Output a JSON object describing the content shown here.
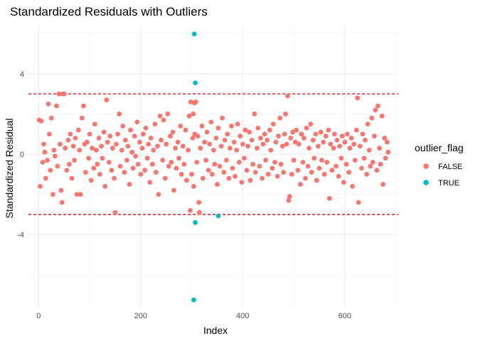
{
  "chart_data": {
    "type": "scatter",
    "title": "Standardized Residuals with Outliers",
    "xlabel": "Index",
    "ylabel": "Standardized Residual",
    "xlim": [
      -20,
      705
    ],
    "ylim": [
      -7.6,
      6.4
    ],
    "x_ticks": [
      0,
      200,
      400,
      600
    ],
    "y_ticks": [
      -4,
      0,
      4
    ],
    "grid": true,
    "threshold_lines": [
      3,
      -3
    ],
    "threshold_color": "#e8131f",
    "legend": {
      "title": "outlier_flag",
      "placement": "right",
      "entries": [
        {
          "label": "FALSE",
          "color": "#f8766d"
        },
        {
          "label": "TRUE",
          "color": "#00bfc4"
        }
      ]
    },
    "series": [
      {
        "name": "TRUE",
        "color": "#00bfc4",
        "points": [
          [
            305,
            5.98
          ],
          [
            307,
            3.55
          ],
          [
            307,
            -3.4
          ],
          [
            352,
            -3.07
          ],
          [
            304,
            -7.25
          ]
        ]
      },
      {
        "name": "FALSE",
        "color": "#f8766d",
        "points": [
          [
            1,
            1.7
          ],
          [
            3,
            -1.6
          ],
          [
            5,
            1.65
          ],
          [
            8,
            -0.4
          ],
          [
            10,
            0.5
          ],
          [
            12,
            0.1
          ],
          [
            14,
            -1.2
          ],
          [
            17,
            -0.3
          ],
          [
            19,
            2.5
          ],
          [
            21,
            1.0
          ],
          [
            23,
            -0.8
          ],
          [
            25,
            1.8
          ],
          [
            28,
            -2.0
          ],
          [
            30,
            0.2
          ],
          [
            32,
            -0.1
          ],
          [
            35,
            2.4
          ],
          [
            37,
            -0.6
          ],
          [
            40,
            3.0
          ],
          [
            42,
            0.5
          ],
          [
            44,
            -1.8
          ],
          [
            46,
            -2.4
          ],
          [
            48,
            3.0
          ],
          [
            50,
            3.0
          ],
          [
            52,
            0.3
          ],
          [
            55,
            -0.8
          ],
          [
            58,
            0.7
          ],
          [
            60,
            -0.5
          ],
          [
            62,
            1.0
          ],
          [
            65,
            -1.2
          ],
          [
            68,
            0.4
          ],
          [
            70,
            -0.3
          ],
          [
            72,
            0.8
          ],
          [
            75,
            -2.0
          ],
          [
            78,
            1.2
          ],
          [
            80,
            0.2
          ],
          [
            82,
            -2.0
          ],
          [
            85,
            1.8
          ],
          [
            88,
            2.4
          ],
          [
            90,
            0.5
          ],
          [
            92,
            -0.9
          ],
          [
            95,
            0.6
          ],
          [
            98,
            -0.2
          ],
          [
            100,
            1.0
          ],
          [
            103,
            -1.3
          ],
          [
            105,
            0.3
          ],
          [
            108,
            -0.7
          ],
          [
            110,
            1.5
          ],
          [
            113,
            0.2
          ],
          [
            115,
            -0.5
          ],
          [
            118,
            0.8
          ],
          [
            120,
            -1.0
          ],
          [
            123,
            0.4
          ],
          [
            125,
            -0.2
          ],
          [
            128,
            1.1
          ],
          [
            130,
            -1.6
          ],
          [
            133,
            2.7
          ],
          [
            135,
            0.6
          ],
          [
            138,
            -0.4
          ],
          [
            140,
            0.9
          ],
          [
            143,
            -0.8
          ],
          [
            145,
            0.3
          ],
          [
            148,
            -1.2
          ],
          [
            150,
            -2.9
          ],
          [
            152,
            0.5
          ],
          [
            155,
            1.0
          ],
          [
            158,
            2.0
          ],
          [
            160,
            -0.6
          ],
          [
            163,
            0.2
          ],
          [
            165,
            1.4
          ],
          [
            168,
            -0.9
          ],
          [
            170,
            0.7
          ],
          [
            173,
            -0.3
          ],
          [
            175,
            0.4
          ],
          [
            178,
            -1.5
          ],
          [
            180,
            1.2
          ],
          [
            183,
            0.1
          ],
          [
            185,
            -0.7
          ],
          [
            188,
            0.9
          ],
          [
            190,
            -0.1
          ],
          [
            193,
            1.6
          ],
          [
            195,
            -0.5
          ],
          [
            198,
            0.6
          ],
          [
            200,
            -1.0
          ],
          [
            203,
            0.3
          ],
          [
            205,
            1.0
          ],
          [
            208,
            -0.8
          ],
          [
            210,
            1.3
          ],
          [
            213,
            -0.2
          ],
          [
            215,
            0.5
          ],
          [
            218,
            -1.4
          ],
          [
            220,
            0.8
          ],
          [
            223,
            -0.5
          ],
          [
            225,
            0.2
          ],
          [
            228,
            1.5
          ],
          [
            230,
            -0.9
          ],
          [
            233,
            0.4
          ],
          [
            235,
            -2.0
          ],
          [
            238,
            1.9
          ],
          [
            240,
            0.7
          ],
          [
            243,
            -0.3
          ],
          [
            245,
            1.7
          ],
          [
            248,
            -1.2
          ],
          [
            250,
            0.5
          ],
          [
            253,
            2.0
          ],
          [
            255,
            -0.6
          ],
          [
            258,
            0.9
          ],
          [
            260,
            -0.4
          ],
          [
            263,
            1.1
          ],
          [
            265,
            -1.8
          ],
          [
            268,
            0.3
          ],
          [
            270,
            -0.7
          ],
          [
            273,
            0.6
          ],
          [
            275,
            -0.2
          ],
          [
            278,
            1.4
          ],
          [
            280,
            -1.0
          ],
          [
            283,
            0.4
          ],
          [
            285,
            -0.5
          ],
          [
            288,
            1.2
          ],
          [
            290,
            -1.3
          ],
          [
            293,
            0.2
          ],
          [
            295,
            1.9
          ],
          [
            297,
            -2.8
          ],
          [
            298,
            2.6
          ],
          [
            300,
            -1.0
          ],
          [
            302,
            0.8
          ],
          [
            303,
            2.0
          ],
          [
            304,
            -1.6
          ],
          [
            305,
            2.55
          ],
          [
            306,
            1.0
          ],
          [
            308,
            2.6
          ],
          [
            310,
            -0.4
          ],
          [
            312,
            0.9
          ],
          [
            314,
            -2.4
          ],
          [
            315,
            -2.9
          ],
          [
            317,
            0.3
          ],
          [
            320,
            1.4
          ],
          [
            322,
            -1.2
          ],
          [
            325,
            0.6
          ],
          [
            328,
            -0.3
          ],
          [
            330,
            1.1
          ],
          [
            333,
            -0.8
          ],
          [
            335,
            0.5
          ],
          [
            338,
            1.6
          ],
          [
            340,
            -1.0
          ],
          [
            343,
            0.2
          ],
          [
            345,
            -0.5
          ],
          [
            348,
            0.8
          ],
          [
            350,
            -1.5
          ],
          [
            352,
            1.3
          ],
          [
            355,
            -0.6
          ],
          [
            358,
            0.4
          ],
          [
            360,
            1.8
          ],
          [
            363,
            -0.9
          ],
          [
            365,
            0.7
          ],
          [
            368,
            -0.3
          ],
          [
            370,
            1.0
          ],
          [
            373,
            -1.2
          ],
          [
            375,
            0.3
          ],
          [
            378,
            1.4
          ],
          [
            380,
            -0.7
          ],
          [
            383,
            0.6
          ],
          [
            385,
            -1.1
          ],
          [
            388,
            0.2
          ],
          [
            390,
            1.5
          ],
          [
            393,
            -0.4
          ],
          [
            395,
            0.9
          ],
          [
            398,
            -1.4
          ],
          [
            400,
            0.5
          ],
          [
            403,
            -0.2
          ],
          [
            405,
            1.2
          ],
          [
            408,
            -0.8
          ],
          [
            410,
            0.4
          ],
          [
            413,
            1.1
          ],
          [
            415,
            -1.3
          ],
          [
            418,
            0.7
          ],
          [
            420,
            -0.5
          ],
          [
            423,
            2.0
          ],
          [
            425,
            -0.9
          ],
          [
            428,
            0.3
          ],
          [
            430,
            1.3
          ],
          [
            433,
            -0.6
          ],
          [
            435,
            0.8
          ],
          [
            438,
            -1.2
          ],
          [
            440,
            0.5
          ],
          [
            443,
            1.0
          ],
          [
            445,
            -0.3
          ],
          [
            448,
            0.7
          ],
          [
            450,
            -1.0
          ],
          [
            453,
            1.2
          ],
          [
            455,
            0.2
          ],
          [
            458,
            -0.7
          ],
          [
            460,
            1.5
          ],
          [
            463,
            -0.4
          ],
          [
            465,
            0.6
          ],
          [
            468,
            -1.1
          ],
          [
            470,
            0.9
          ],
          [
            473,
            1.8
          ],
          [
            475,
            -0.5
          ],
          [
            478,
            0.4
          ],
          [
            480,
            -0.9
          ],
          [
            482,
            1.0
          ],
          [
            484,
            2.0
          ],
          [
            486,
            0.5
          ],
          [
            488,
            2.9
          ],
          [
            490,
            -2.3
          ],
          [
            492,
            -2.1
          ],
          [
            494,
            0.8
          ],
          [
            496,
            -1.0
          ],
          [
            498,
            1.1
          ],
          [
            500,
            -0.3
          ],
          [
            503,
            0.6
          ],
          [
            505,
            1.2
          ],
          [
            508,
            -0.8
          ],
          [
            510,
            0.5
          ],
          [
            513,
            -1.5
          ],
          [
            515,
            1.0
          ],
          [
            518,
            -0.4
          ],
          [
            520,
            0.8
          ],
          [
            523,
            -1.2
          ],
          [
            525,
            1.3
          ],
          [
            528,
            -0.6
          ],
          [
            530,
            0.3
          ],
          [
            533,
            1.5
          ],
          [
            535,
            -0.9
          ],
          [
            538,
            0.7
          ],
          [
            540,
            -0.2
          ],
          [
            543,
            1.0
          ],
          [
            545,
            -1.3
          ],
          [
            548,
            0.4
          ],
          [
            550,
            -0.7
          ],
          [
            553,
            1.1
          ],
          [
            555,
            -0.3
          ],
          [
            558,
            0.6
          ],
          [
            560,
            -1.0
          ],
          [
            563,
            0.9
          ],
          [
            565,
            -0.4
          ],
          [
            568,
            1.2
          ],
          [
            570,
            -2.2
          ],
          [
            572,
            0.5
          ],
          [
            575,
            -0.8
          ],
          [
            578,
            0.3
          ],
          [
            580,
            1.0
          ],
          [
            583,
            -0.6
          ],
          [
            585,
            0.7
          ],
          [
            588,
            -1.1
          ],
          [
            590,
            0.4
          ],
          [
            593,
            -0.2
          ],
          [
            595,
            0.9
          ],
          [
            598,
            -1.4
          ],
          [
            600,
            0.6
          ],
          [
            603,
            -0.5
          ],
          [
            605,
            1.0
          ],
          [
            608,
            -0.9
          ],
          [
            610,
            0.3
          ],
          [
            613,
            0.8
          ],
          [
            615,
            -1.6
          ],
          [
            618,
            0.5
          ],
          [
            620,
            -0.3
          ],
          [
            623,
            1.2
          ],
          [
            625,
            2.8
          ],
          [
            627,
            -2.4
          ],
          [
            630,
            0.4
          ],
          [
            633,
            -0.7
          ],
          [
            635,
            1.0
          ],
          [
            638,
            -0.2
          ],
          [
            640,
            0.7
          ],
          [
            643,
            -1.0
          ],
          [
            645,
            1.5
          ],
          [
            648,
            0.2
          ],
          [
            650,
            -0.6
          ],
          [
            653,
            1.8
          ],
          [
            655,
            -0.4
          ],
          [
            658,
            0.9
          ],
          [
            660,
            2.2
          ],
          [
            663,
            -0.8
          ],
          [
            665,
            2.4
          ],
          [
            668,
            0.3
          ],
          [
            670,
            -0.5
          ],
          [
            673,
            1.9
          ],
          [
            675,
            -1.5
          ],
          [
            678,
            0.8
          ],
          [
            680,
            -0.2
          ],
          [
            683,
            0.6
          ],
          [
            685,
            0.1
          ]
        ]
      }
    ]
  }
}
